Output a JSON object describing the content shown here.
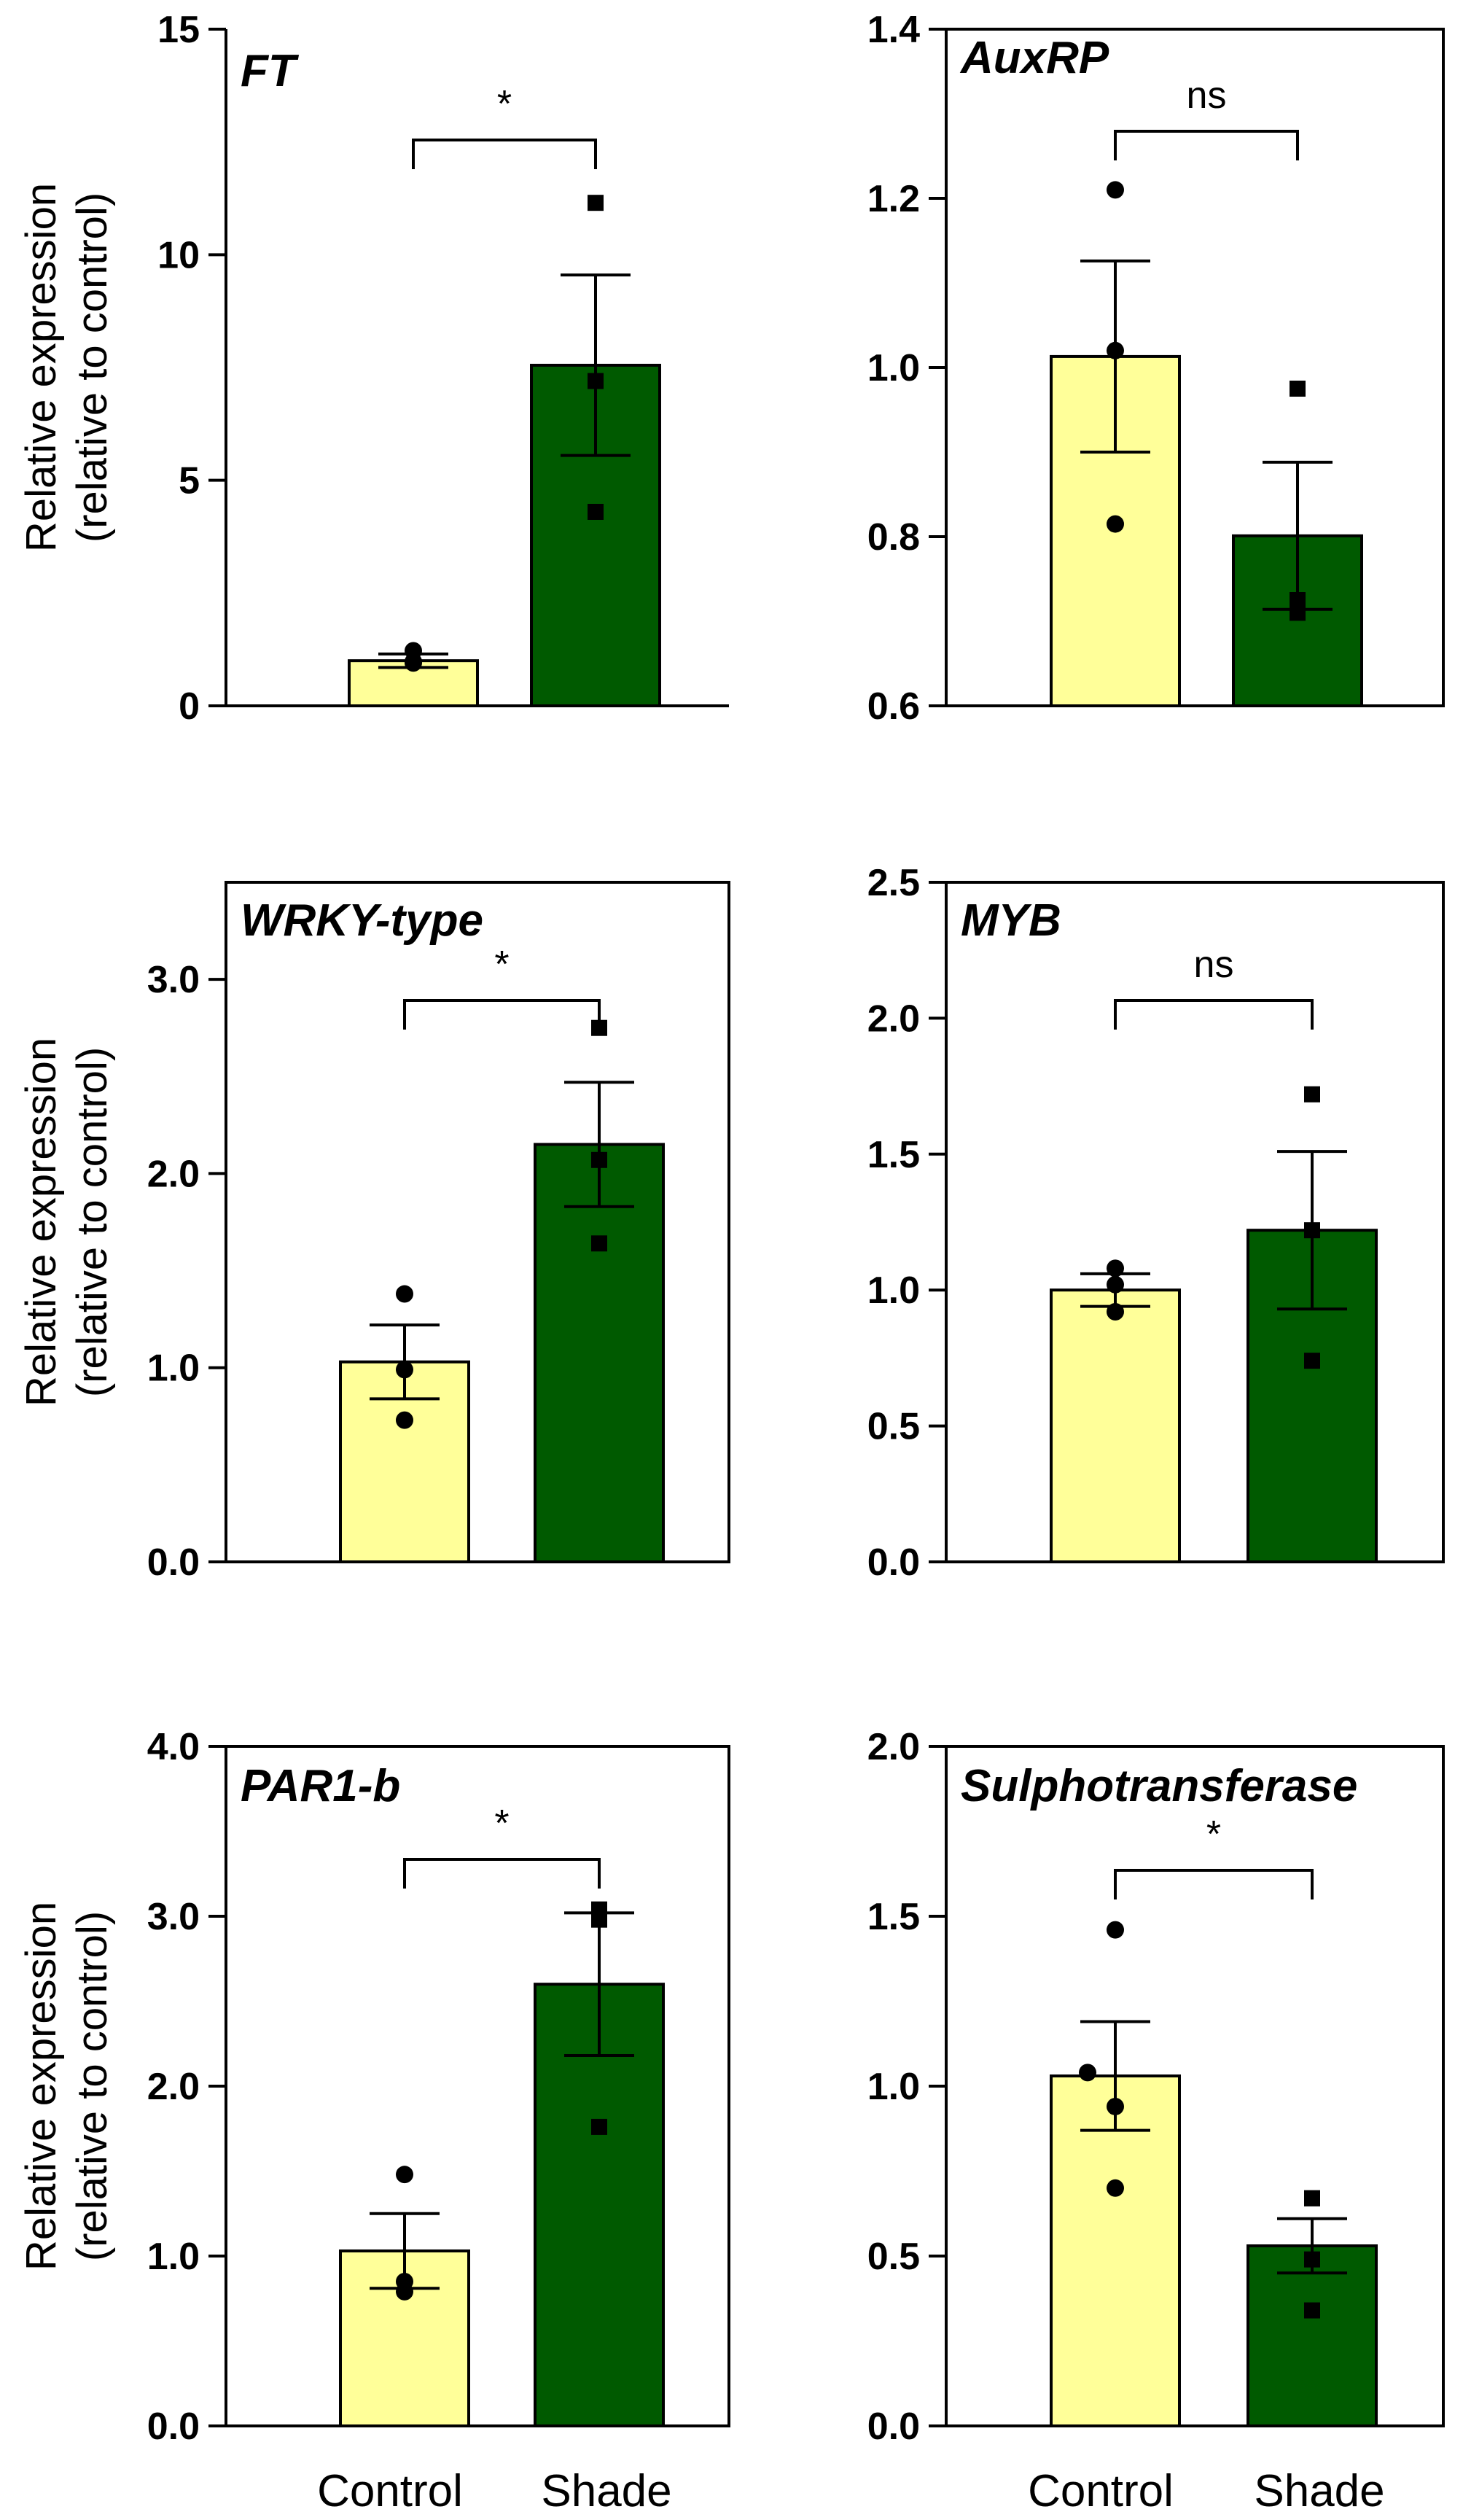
{
  "figure": {
    "ylabel_line1": "Relative expression",
    "ylabel_line2": "(relative to control)",
    "x_categories": [
      "Control",
      "Shade"
    ]
  },
  "colors": {
    "control_fill": "#ffff99",
    "shade_fill": "#005a00",
    "frame": "#000000"
  },
  "chart_data": [
    {
      "type": "bar",
      "title": "FT",
      "categories": [
        "Control",
        "Shade"
      ],
      "values": [
        1.0,
        7.55
      ],
      "sem": [
        0.15,
        2.0
      ],
      "points": [
        [
          1.22,
          0.95,
          0.98
        ],
        [
          11.15,
          7.2,
          4.3
        ]
      ],
      "ylim": [
        0,
        15
      ],
      "yticks": [
        0,
        5,
        10,
        15
      ],
      "ytick_labels": [
        "0",
        "5",
        "10",
        "15"
      ],
      "significance": "*",
      "ylabel": "Relative expression (relative to control)",
      "show_ylabel": true,
      "boxed": false,
      "show_xlabels": false
    },
    {
      "type": "bar",
      "title": "AuxRP",
      "categories": [
        "Control",
        "Shade"
      ],
      "values": [
        1.013,
        0.801
      ],
      "sem": [
        0.113,
        0.087
      ],
      "points": [
        [
          1.21,
          1.02,
          0.815
        ],
        [
          0.975,
          0.725,
          0.71
        ]
      ],
      "ylim": [
        0.6,
        1.4
      ],
      "yticks": [
        0.6,
        0.8,
        1.0,
        1.2,
        1.4
      ],
      "ytick_labels": [
        "0.6",
        "0.8",
        "1.0",
        "1.2",
        "1.4"
      ],
      "significance": "ns",
      "ylabel": "",
      "show_ylabel": false,
      "boxed": true,
      "show_xlabels": false
    },
    {
      "type": "bar",
      "title": "WRKY-type",
      "categories": [
        "Control",
        "Shade"
      ],
      "values": [
        1.03,
        2.15
      ],
      "sem": [
        0.19,
        0.32
      ],
      "points": [
        [
          1.38,
          0.99,
          0.73
        ],
        [
          2.75,
          2.07,
          1.64
        ]
      ],
      "ylim": [
        0,
        3.5
      ],
      "yticks": [
        0,
        1,
        2,
        3
      ],
      "ytick_labels": [
        "0.0",
        "1.0",
        "2.0",
        "3.0"
      ],
      "significance": "*",
      "ylabel": "Relative expression (relative to control)",
      "show_ylabel": true,
      "boxed": true,
      "show_xlabels": false
    },
    {
      "type": "bar",
      "title": "MYB",
      "categories": [
        "Control",
        "Shade"
      ],
      "values": [
        1.0,
        1.22
      ],
      "sem": [
        0.06,
        0.29
      ],
      "points": [
        [
          1.08,
          1.02,
          0.92
        ],
        [
          1.72,
          1.22,
          0.74
        ]
      ],
      "ylim": [
        0,
        2.5
      ],
      "yticks": [
        0,
        0.5,
        1.0,
        1.5,
        2.0,
        2.5
      ],
      "ytick_labels": [
        "0.0",
        "0.5",
        "1.0",
        "1.5",
        "2.0",
        "2.5"
      ],
      "significance": "ns",
      "ylabel": "",
      "show_ylabel": false,
      "boxed": true,
      "show_xlabels": false
    },
    {
      "type": "bar",
      "title": "PAR1-b",
      "categories": [
        "Control",
        "Shade"
      ],
      "values": [
        1.03,
        2.6
      ],
      "sem": [
        0.22,
        0.42
      ],
      "points": [
        [
          1.48,
          0.85,
          0.79
        ],
        [
          3.04,
          2.98,
          1.76
        ]
      ],
      "ylim": [
        0,
        4
      ],
      "yticks": [
        0,
        1,
        2,
        3,
        4
      ],
      "ytick_labels": [
        "0.0",
        "1.0",
        "2.0",
        "3.0",
        "4.0"
      ],
      "significance": "*",
      "ylabel": "Relative expression (relative to control)",
      "show_ylabel": true,
      "boxed": true,
      "show_xlabels": true
    },
    {
      "type": "bar",
      "title": "Sulphotransferase",
      "categories": [
        "Control",
        "Shade"
      ],
      "values": [
        1.03,
        0.53
      ],
      "sem": [
        0.16,
        0.08
      ],
      "points": [
        [
          1.46,
          1.04,
          0.94,
          0.7
        ],
        [
          0.67,
          0.67,
          0.49,
          0.34
        ]
      ],
      "ylim": [
        0,
        2
      ],
      "yticks": [
        0,
        0.5,
        1.0,
        1.5,
        2.0
      ],
      "ytick_labels": [
        "0.0",
        "0.5",
        "1.0",
        "1.5",
        "2.0"
      ],
      "significance": "*",
      "ylabel": "",
      "show_ylabel": false,
      "boxed": true,
      "show_xlabels": true
    }
  ]
}
